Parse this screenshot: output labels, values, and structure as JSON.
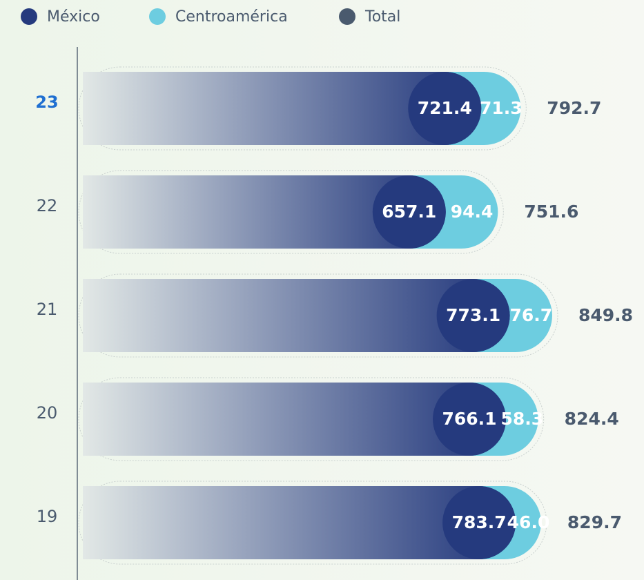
{
  "chart_data": {
    "type": "stacked-bar-horizontal",
    "categories": [
      "23",
      "22",
      "21",
      "20",
      "19"
    ],
    "series": [
      {
        "name": "México",
        "color": "#253a7e",
        "values": [
          721.4,
          657.1,
          773.1,
          766.1,
          783.7
        ]
      },
      {
        "name": "Centroamérica",
        "color": "#6dcde0",
        "values": [
          71.3,
          94.4,
          76.7,
          58.3,
          46.0
        ],
        "value_labels": [
          "71.3",
          "94.4",
          "76.7",
          "58.3",
          "46.0"
        ]
      },
      {
        "name": "Total",
        "color": "#4a5a6e",
        "values": [
          792.7,
          751.6,
          849.8,
          824.4,
          829.7
        ]
      }
    ]
  }
}
